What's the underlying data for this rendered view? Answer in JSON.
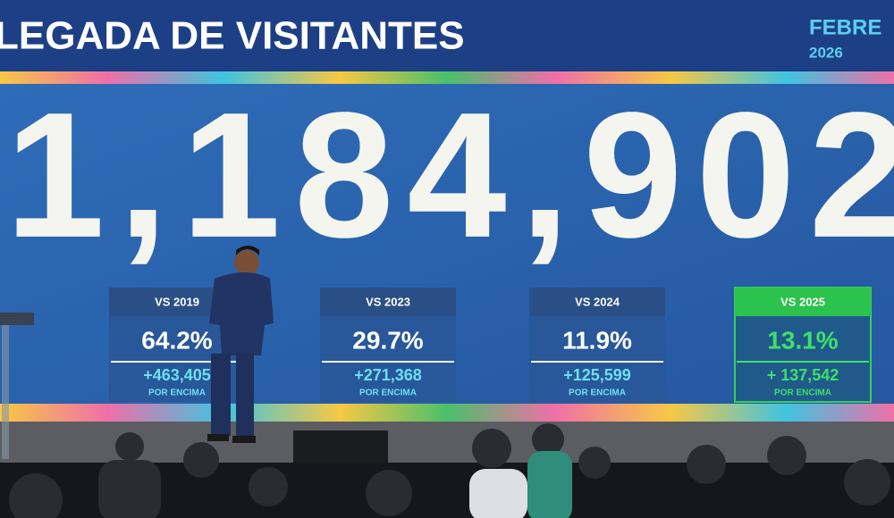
{
  "screen": {
    "header": {
      "title": "LEGADA DE VISITANTES",
      "month": "FEBRE",
      "year": "2026"
    },
    "total": "1,184,902",
    "cards": [
      {
        "label": "VS 2019",
        "percent": "64.2%",
        "delta": "+463,405",
        "note": "POR ENCIMA",
        "highlight": false
      },
      {
        "label": "VS 2023",
        "percent": "29.7%",
        "delta": "+271,368",
        "note": "POR ENCIMA",
        "highlight": false
      },
      {
        "label": "VS 2024",
        "percent": "11.9%",
        "delta": "+125,599",
        "note": "POR ENCIMA",
        "highlight": false
      },
      {
        "label": "VS 2025",
        "percent": "13.1%",
        "delta": "+ 137,542",
        "note": "POR ENCIMA",
        "highlight": true
      }
    ]
  }
}
